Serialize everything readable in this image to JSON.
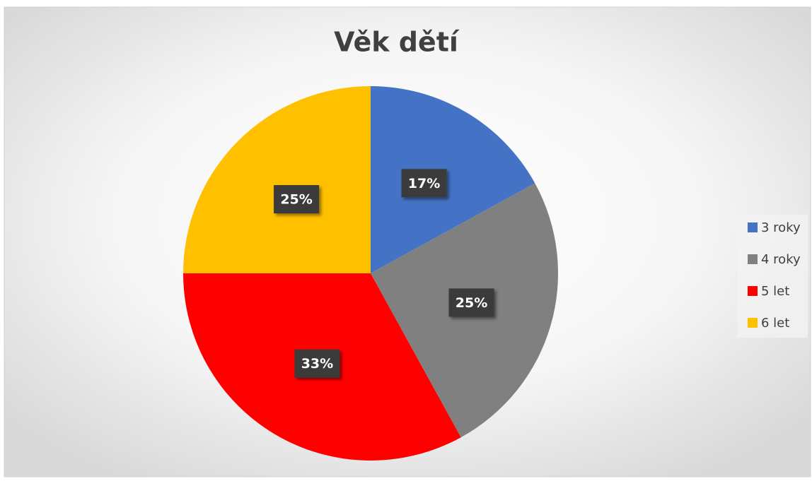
{
  "chart_data": {
    "type": "pie",
    "title": "Věk dětí",
    "categories": [
      "3 roky",
      "4 roky",
      "5 let",
      "6 let"
    ],
    "values": [
      17,
      25,
      33,
      25
    ],
    "value_labels": [
      "17%",
      "25%",
      "33%",
      "25%"
    ],
    "colors": [
      "#4472c4",
      "#808080",
      "#ff0000",
      "#ffc000"
    ],
    "legend": "right"
  }
}
